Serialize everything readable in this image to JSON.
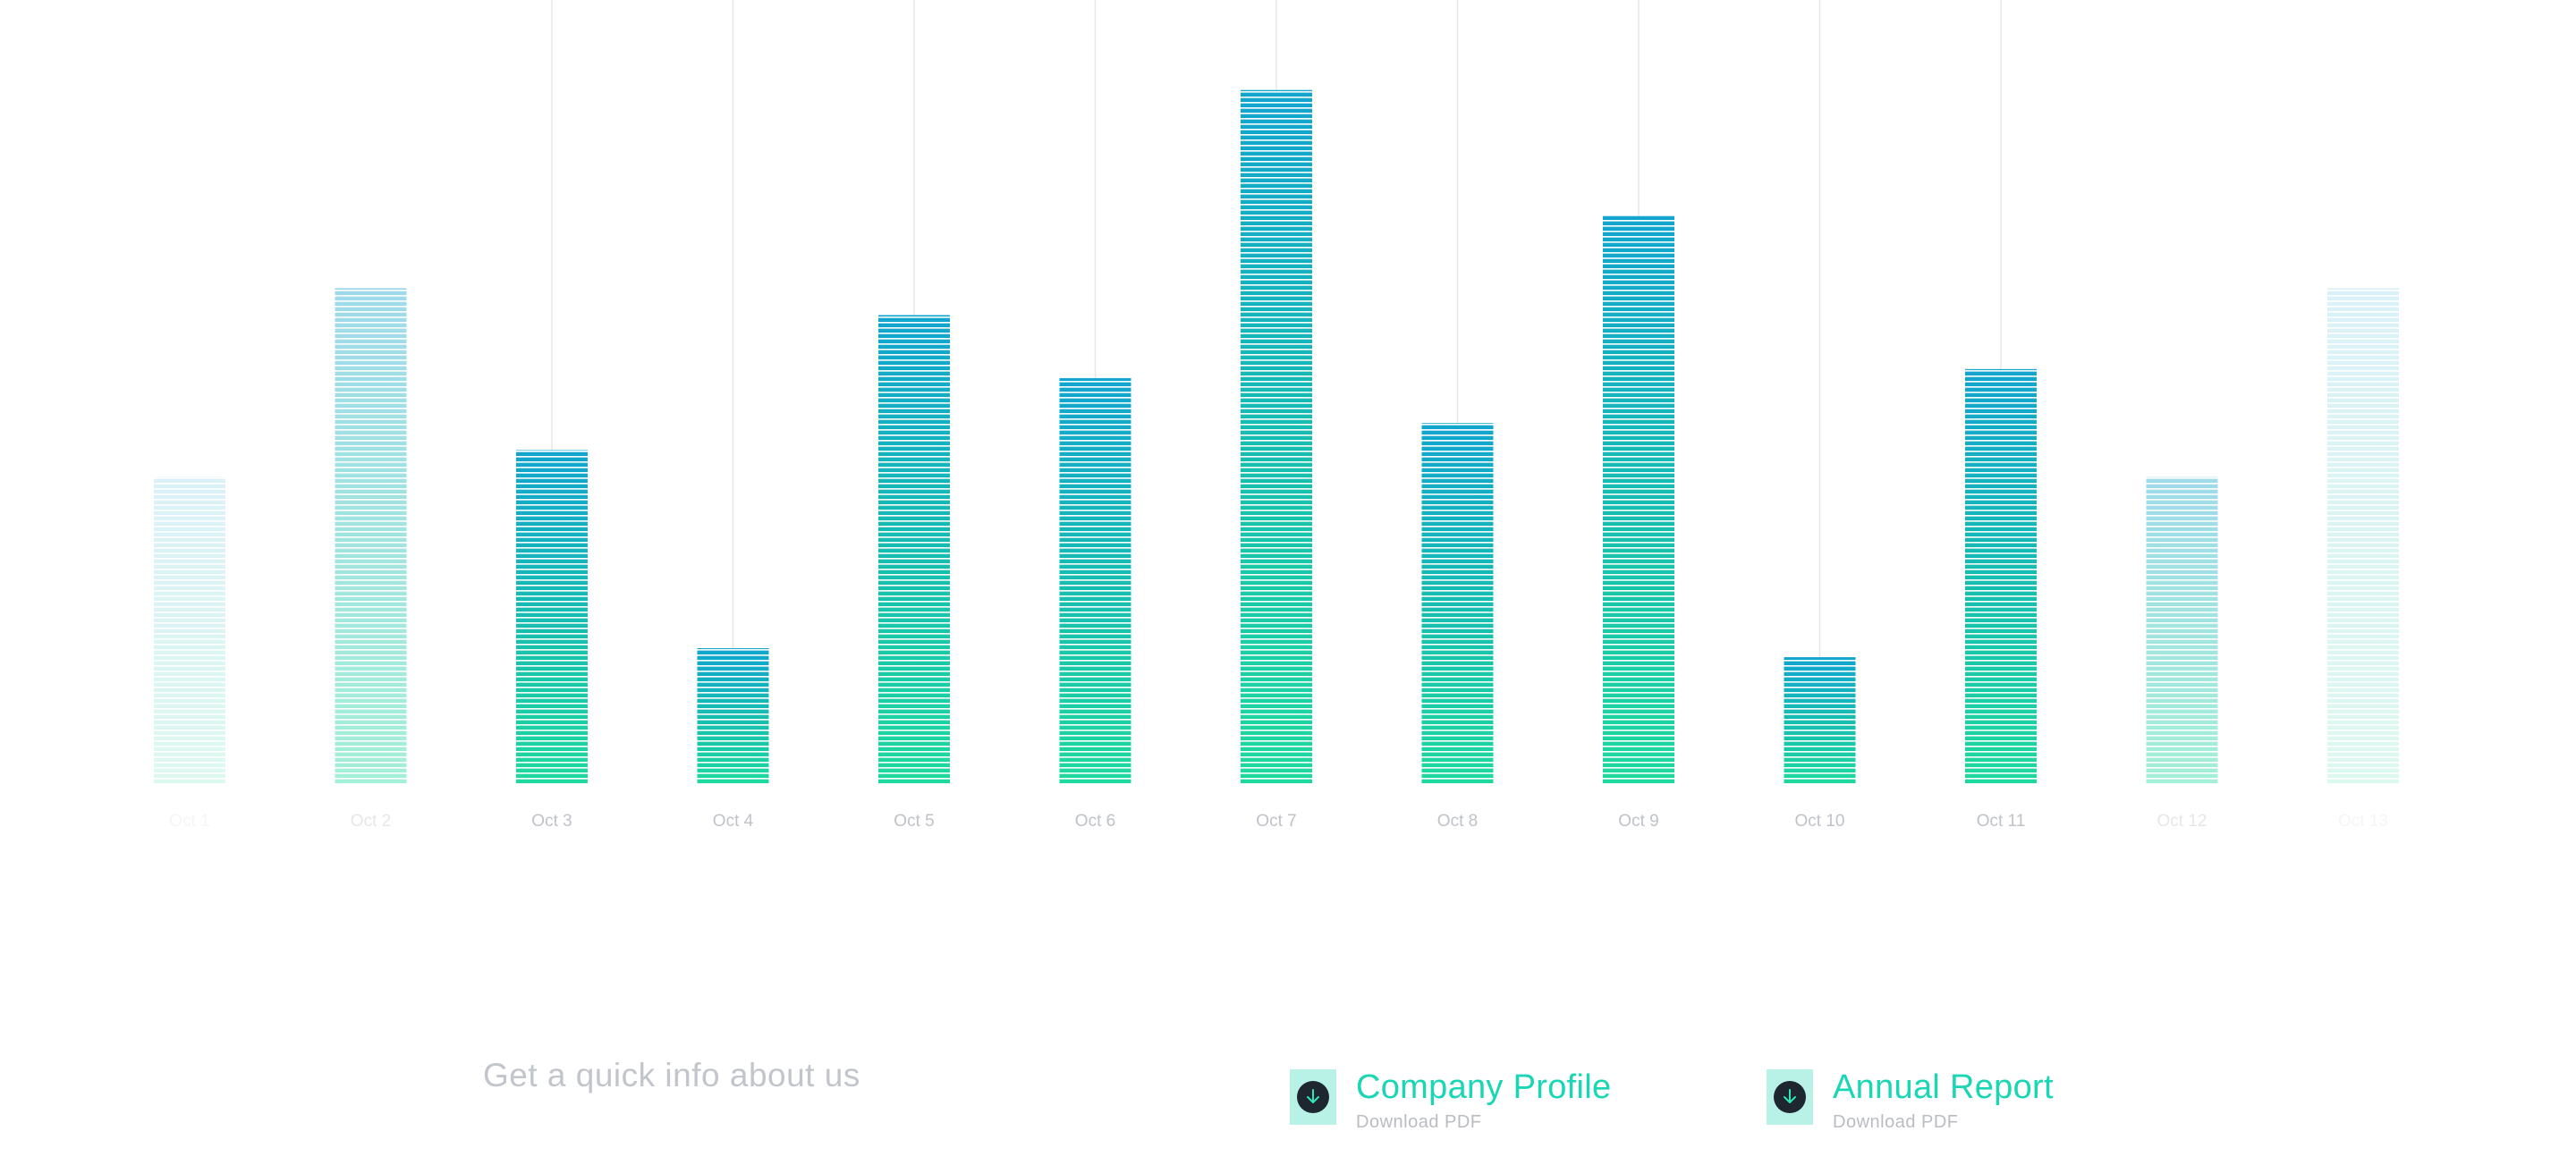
{
  "chart_data": {
    "type": "bar",
    "categories": [
      "Oct 1",
      "Oct 2",
      "Oct 3",
      "Oct 4",
      "Oct 5",
      "Oct 6",
      "Oct 7",
      "Oct 8",
      "Oct 9",
      "Oct 10",
      "Oct 11",
      "Oct 12",
      "Oct 13"
    ],
    "values": [
      34,
      55,
      37,
      15,
      52,
      45,
      77,
      40,
      63,
      14,
      46,
      34,
      55
    ],
    "emphasis": [
      0.15,
      0.4,
      1,
      1,
      1,
      1,
      1,
      1,
      1,
      1,
      1,
      0.4,
      0.15
    ],
    "title": "",
    "xlabel": "",
    "ylabel": "",
    "ylim": [
      0,
      87
    ],
    "grid": false,
    "legend": "none",
    "bar_style": "horizontal-striped"
  },
  "colors": {
    "bar_bottom": "#1ed99e",
    "bar_mid": "#17bfae",
    "bar_top": "#12a5cf",
    "guide_line": "#e6e7eb",
    "tick_label": "#bfc2c8",
    "title_accent": "#19d6b4",
    "icon_bg": "#b8f2e6",
    "icon_circle": "#1e2630"
  },
  "footer": {
    "tagline": "Get a quick info about us",
    "downloads": [
      {
        "title": "Company Profile",
        "subtitle": "Download PDF",
        "icon": "download-arrow-icon"
      },
      {
        "title": "Annual Report",
        "subtitle": "Download PDF",
        "icon": "download-arrow-icon"
      }
    ]
  }
}
